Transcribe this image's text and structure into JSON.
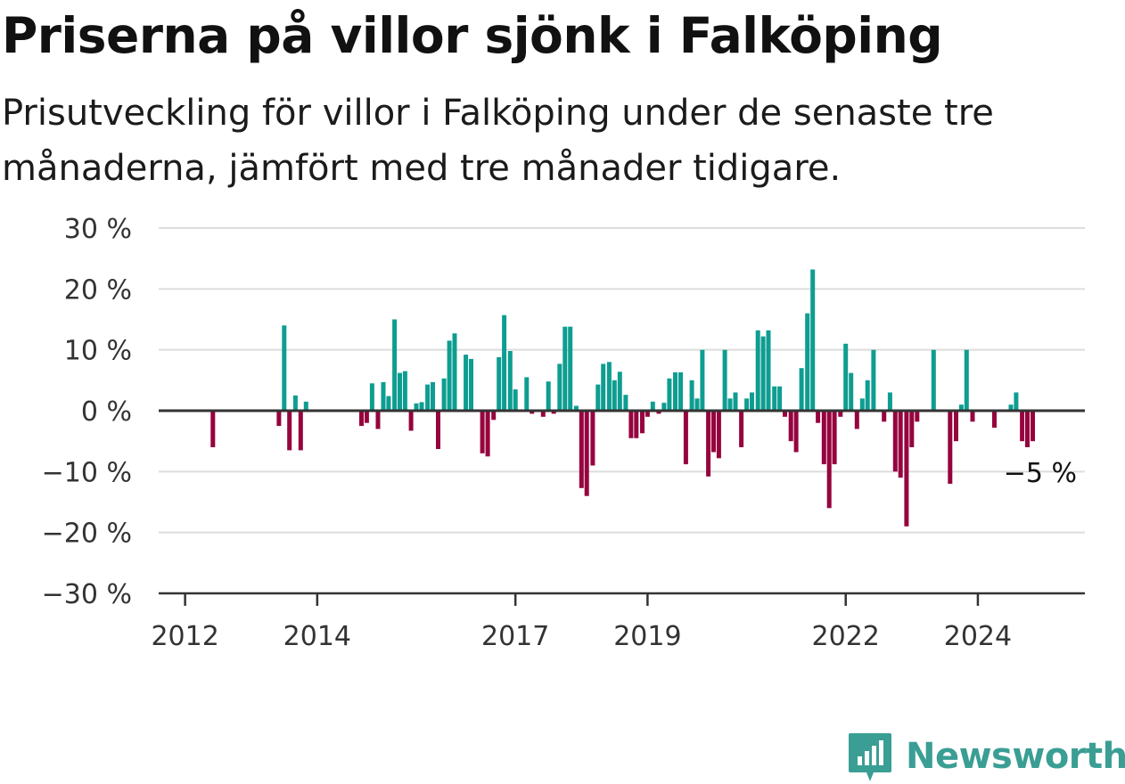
{
  "title": "Priserna på villor sjönk i Falköping",
  "subtitle": "Prisutveckling för villor i Falköping under de senaste tre månaderna, jämfört med tre månader tidigare.",
  "brand": {
    "name": "Newsworthy",
    "icon": "newsworthy-logo-icon",
    "color": "#3a9e94"
  },
  "colors": {
    "positive": "#0e9d91",
    "negative": "#96033e",
    "grid": "#dddddd",
    "axis": "#333333"
  },
  "chart_data": {
    "type": "bar",
    "title": "Priserna på villor sjönk i Falköping",
    "subtitle": "Prisutveckling för villor i Falköping under de senaste tre månaderna, jämfört med tre månader tidigare.",
    "xlabel": "",
    "ylabel": "",
    "ylim": [
      -30,
      30
    ],
    "yticks": [
      30,
      20,
      10,
      0,
      -10,
      -20,
      -30
    ],
    "ytick_labels": [
      "30 %",
      "20 %",
      "10 %",
      "0 %",
      "−10 %",
      "−20 %",
      "−30 %"
    ],
    "xticks": [
      2012,
      2014,
      2017,
      2019,
      2022,
      2024
    ],
    "xlim": [
      2011.6,
      2025.62
    ],
    "grid": true,
    "annotation": {
      "text": "−5 %",
      "value": -5
    },
    "series": [
      {
        "values": [
          [
            2012.42,
            -6
          ],
          [
            2013.42,
            -2.5
          ],
          [
            2013.5,
            14
          ],
          [
            2013.58,
            -6.5
          ],
          [
            2013.67,
            2.5
          ],
          [
            2013.75,
            -6.5
          ],
          [
            2013.83,
            1.5
          ],
          [
            2014.67,
            -2.5
          ],
          [
            2014.75,
            -2
          ],
          [
            2014.83,
            4.5
          ],
          [
            2014.92,
            -3
          ],
          [
            2015.0,
            4.7
          ],
          [
            2015.08,
            2.4
          ],
          [
            2015.17,
            15
          ],
          [
            2015.25,
            6.2
          ],
          [
            2015.33,
            6.5
          ],
          [
            2015.42,
            -3.3
          ],
          [
            2015.5,
            1.2
          ],
          [
            2015.58,
            1.4
          ],
          [
            2015.67,
            4.3
          ],
          [
            2015.75,
            4.7
          ],
          [
            2015.83,
            -6.3
          ],
          [
            2015.92,
            5.3
          ],
          [
            2016.0,
            11.5
          ],
          [
            2016.08,
            12.7
          ],
          [
            2016.25,
            9.2
          ],
          [
            2016.33,
            8.5
          ],
          [
            2016.5,
            -7
          ],
          [
            2016.58,
            -7.5
          ],
          [
            2016.67,
            -1.5
          ],
          [
            2016.75,
            8.8
          ],
          [
            2016.83,
            15.7
          ],
          [
            2016.92,
            9.8
          ],
          [
            2017.0,
            3.5
          ],
          [
            2017.17,
            5.5
          ],
          [
            2017.25,
            -0.5
          ],
          [
            2017.42,
            -1
          ],
          [
            2017.5,
            4.8
          ],
          [
            2017.58,
            -0.5
          ],
          [
            2017.67,
            7.7
          ],
          [
            2017.75,
            13.8
          ],
          [
            2017.83,
            13.8
          ],
          [
            2017.92,
            0.8
          ],
          [
            2018.0,
            -12.7
          ],
          [
            2018.08,
            -14
          ],
          [
            2018.17,
            -9
          ],
          [
            2018.25,
            4.3
          ],
          [
            2018.33,
            7.7
          ],
          [
            2018.42,
            8
          ],
          [
            2018.5,
            5
          ],
          [
            2018.58,
            6.4
          ],
          [
            2018.67,
            2.6
          ],
          [
            2018.75,
            -4.5
          ],
          [
            2018.83,
            -4.5
          ],
          [
            2018.92,
            -3.7
          ],
          [
            2019.0,
            -1
          ],
          [
            2019.08,
            1.5
          ],
          [
            2019.17,
            -0.5
          ],
          [
            2019.25,
            1.3
          ],
          [
            2019.33,
            5.3
          ],
          [
            2019.42,
            6.3
          ],
          [
            2019.5,
            6.3
          ],
          [
            2019.58,
            -8.8
          ],
          [
            2019.67,
            5
          ],
          [
            2019.75,
            2
          ],
          [
            2019.83,
            10
          ],
          [
            2019.92,
            -10.8
          ],
          [
            2020.0,
            -6.8
          ],
          [
            2020.08,
            -7.8
          ],
          [
            2020.17,
            10
          ],
          [
            2020.25,
            2
          ],
          [
            2020.33,
            3
          ],
          [
            2020.42,
            -6
          ],
          [
            2020.5,
            2
          ],
          [
            2020.58,
            3
          ],
          [
            2020.67,
            13.2
          ],
          [
            2020.75,
            12.2
          ],
          [
            2020.83,
            13.2
          ],
          [
            2020.92,
            4
          ],
          [
            2021.0,
            4
          ],
          [
            2021.08,
            -1
          ],
          [
            2021.17,
            -5
          ],
          [
            2021.25,
            -6.8
          ],
          [
            2021.33,
            7
          ],
          [
            2021.42,
            16
          ],
          [
            2021.5,
            23.2
          ],
          [
            2021.58,
            -2
          ],
          [
            2021.67,
            -8.8
          ],
          [
            2021.75,
            -16
          ],
          [
            2021.83,
            -8.8
          ],
          [
            2021.92,
            -1
          ],
          [
            2022.0,
            11
          ],
          [
            2022.08,
            6.2
          ],
          [
            2022.17,
            -3
          ],
          [
            2022.25,
            2
          ],
          [
            2022.33,
            5
          ],
          [
            2022.42,
            10
          ],
          [
            2022.58,
            -1.8
          ],
          [
            2022.67,
            3
          ],
          [
            2022.75,
            -10
          ],
          [
            2022.83,
            -11
          ],
          [
            2022.92,
            -19
          ],
          [
            2023.0,
            -6
          ],
          [
            2023.08,
            -1.8
          ],
          [
            2023.33,
            10
          ],
          [
            2023.58,
            -12
          ],
          [
            2023.67,
            -5
          ],
          [
            2023.75,
            1
          ],
          [
            2023.83,
            10
          ],
          [
            2023.92,
            -1.8
          ],
          [
            2024.25,
            -2.8
          ],
          [
            2024.5,
            1
          ],
          [
            2024.58,
            3
          ],
          [
            2024.67,
            -5
          ],
          [
            2024.75,
            -6
          ],
          [
            2024.83,
            -5
          ]
        ]
      }
    ]
  }
}
